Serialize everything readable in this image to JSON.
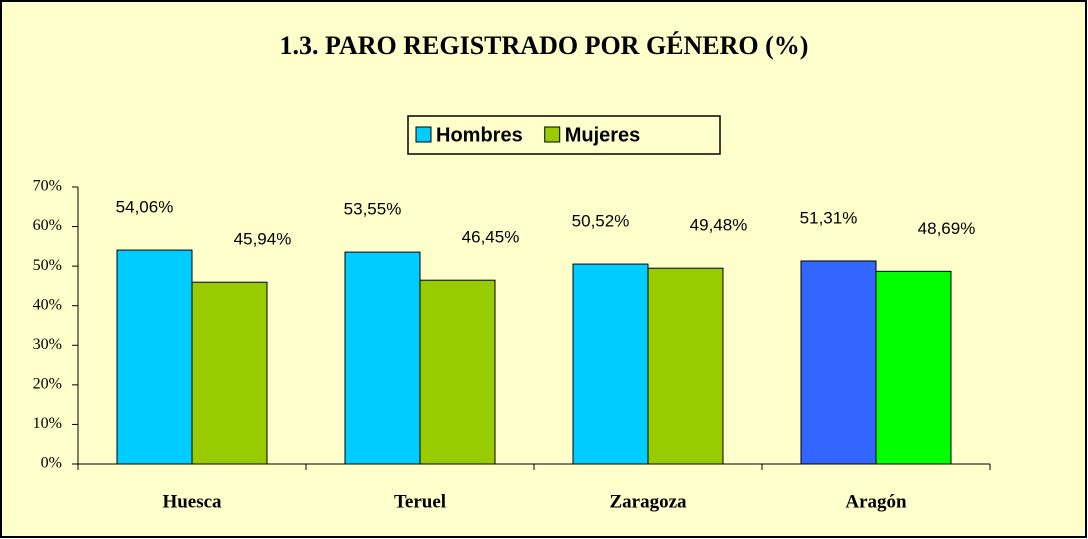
{
  "chart_data": {
    "type": "bar",
    "title": "1.3. PARO REGISTRADO POR GÉNERO (%)",
    "categories": [
      "Huesca",
      "Teruel",
      "Zaragoza",
      "Aragón"
    ],
    "series": [
      {
        "name": "Hombres",
        "color": "#00ccff",
        "colors": [
          "#00ccff",
          "#00ccff",
          "#00ccff",
          "#3366ff"
        ],
        "values": [
          54.06,
          53.55,
          50.52,
          51.31
        ],
        "value_labels": [
          "54,06%",
          "53,55%",
          "50,52%",
          "51,31%"
        ]
      },
      {
        "name": "Mujeres",
        "color": "#99cc00",
        "colors": [
          "#99cc00",
          "#99cc00",
          "#99cc00",
          "#00ff00"
        ],
        "values": [
          45.94,
          46.45,
          49.48,
          48.69
        ],
        "value_labels": [
          "45,94%",
          "46,45%",
          "49,48%",
          "48,69%"
        ]
      }
    ],
    "ylim": [
      0,
      70
    ],
    "yticks": [
      {
        "value": 0,
        "label": "0%"
      },
      {
        "value": 10,
        "label": "10%"
      },
      {
        "value": 20,
        "label": "20%"
      },
      {
        "value": 30,
        "label": "30%"
      },
      {
        "value": 40,
        "label": "40%"
      },
      {
        "value": 50,
        "label": "50%"
      },
      {
        "value": 60,
        "label": "60%"
      },
      {
        "value": 70,
        "label": "70%"
      }
    ],
    "legend": "top",
    "grid": false
  }
}
